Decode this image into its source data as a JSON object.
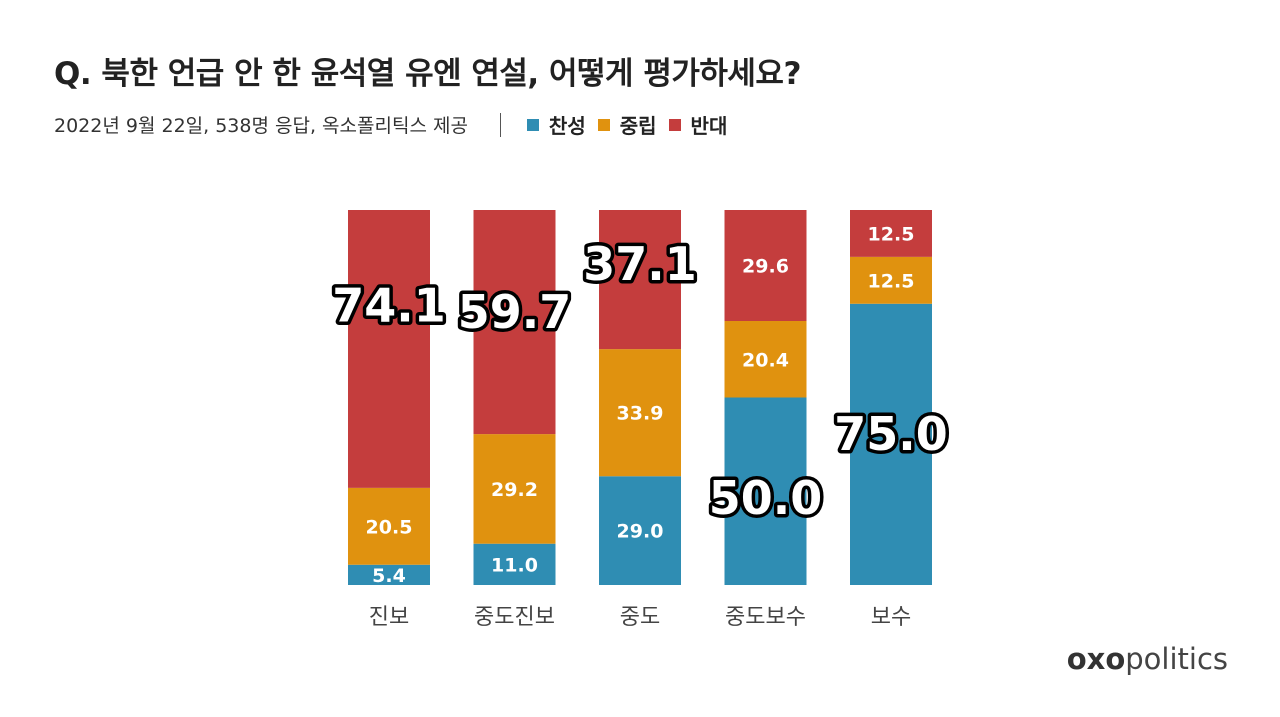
{
  "title": "Q. 북한 언급 안 한 윤석열 유엔 연설, 어떻게 평가하세요?",
  "subtitle": "2022년 9월 22일, 538명 응답, 옥소폴리틱스 제공",
  "legend": [
    {
      "label": "찬성",
      "color": "#2f8db3"
    },
    {
      "label": "중립",
      "color": "#e0920f"
    },
    {
      "label": "반대",
      "color": "#c43d3d"
    }
  ],
  "brand": {
    "bold": "oxo",
    "light": "politics"
  },
  "chart_data": {
    "type": "bar",
    "stacked": true,
    "percent": true,
    "ylim": [
      0,
      100
    ],
    "categories": [
      "진보",
      "중도진보",
      "중도",
      "중도보수",
      "보수"
    ],
    "series": [
      {
        "name": "찬성",
        "color": "#2f8db3",
        "values": [
          5.4,
          11.0,
          29.0,
          50.0,
          75.0
        ]
      },
      {
        "name": "중립",
        "color": "#e0920f",
        "values": [
          20.5,
          29.2,
          33.9,
          20.4,
          12.5
        ]
      },
      {
        "name": "반대",
        "color": "#c43d3d",
        "values": [
          74.1,
          59.7,
          37.1,
          29.6,
          12.5
        ]
      }
    ],
    "highlights": [
      {
        "category": "진보",
        "series": "반대",
        "value": "74.1"
      },
      {
        "category": "중도진보",
        "series": "반대",
        "value": "59.7"
      },
      {
        "category": "중도",
        "series": "반대",
        "value": "37.1"
      },
      {
        "category": "중도보수",
        "series": "찬성",
        "value": "50.0"
      },
      {
        "category": "보수",
        "series": "찬성",
        "value": "75.0"
      }
    ]
  }
}
